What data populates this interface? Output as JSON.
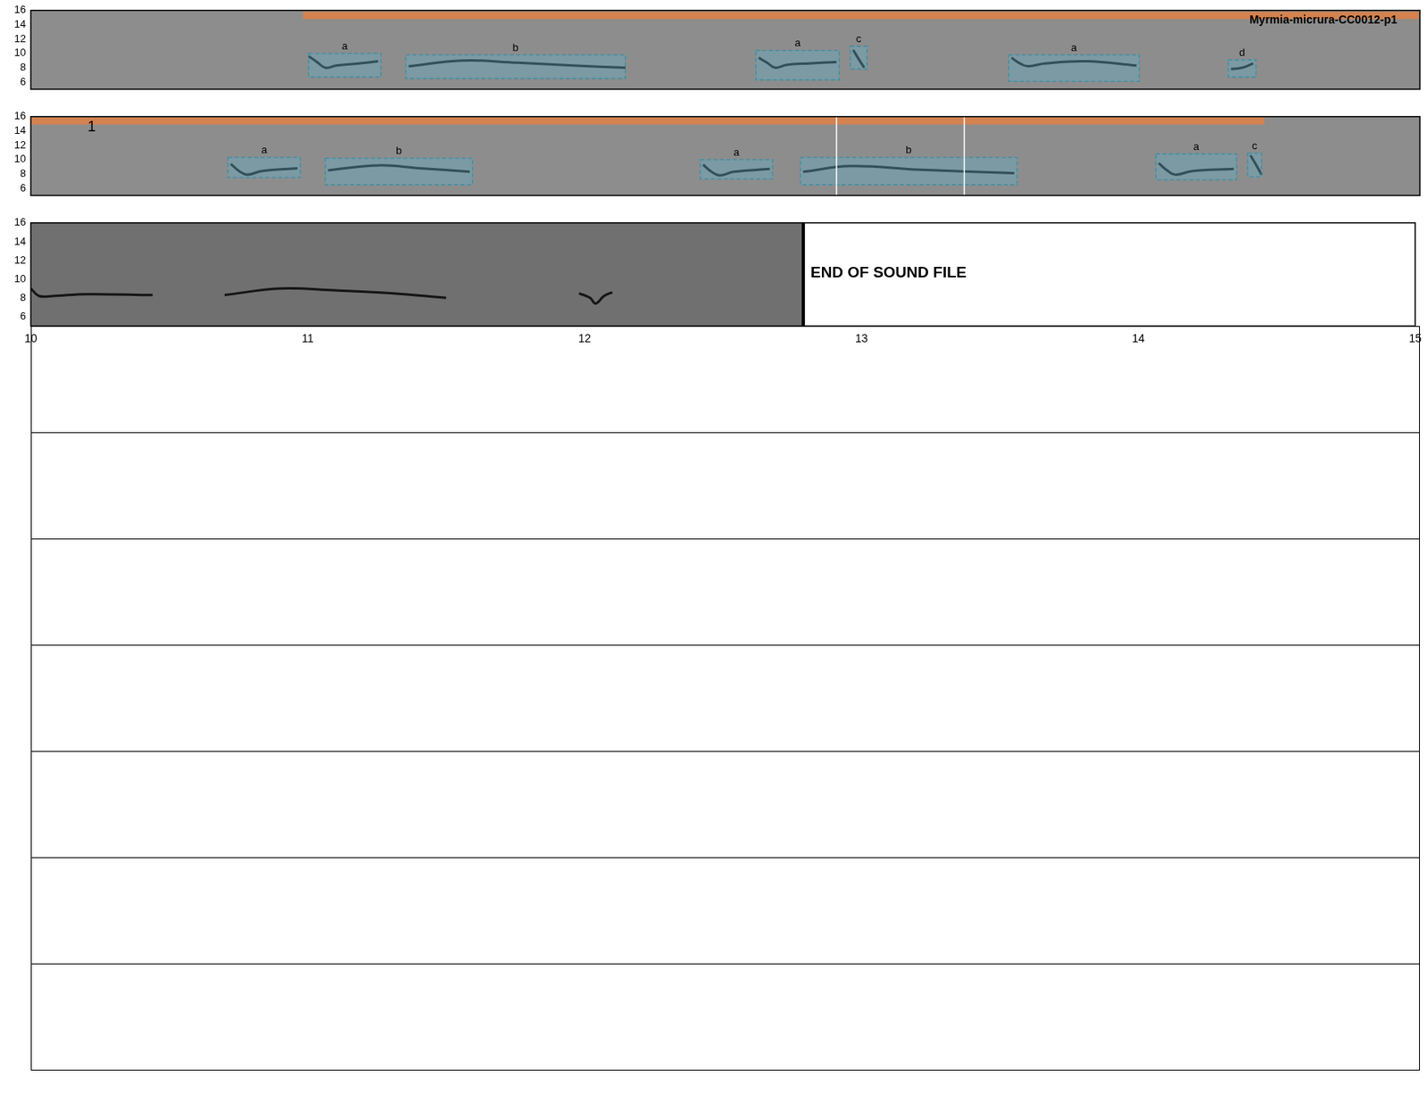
{
  "chart_data": [
    {
      "type": "spectrogram",
      "title": "Myrmia-micrura-CC0012-p1",
      "xlim": [
        0,
        5
      ],
      "ylim": [
        5,
        16
      ],
      "yticks": [
        6,
        8,
        10,
        12,
        14,
        16
      ],
      "tick_labels": "y",
      "grid": false,
      "selection": {
        "x": [
          0.98,
          5.0
        ],
        "y": 15.3
      },
      "annotations": [
        {
          "label": "a",
          "x": [
            1.0,
            1.26
          ],
          "y": [
            6.7,
            10.0
          ]
        },
        {
          "label": "b",
          "x": [
            1.35,
            2.14
          ],
          "y": [
            6.5,
            9.8
          ]
        },
        {
          "label": "a",
          "x": [
            2.61,
            2.91
          ],
          "y": [
            6.3,
            10.4
          ]
        },
        {
          "label": "c",
          "x": [
            2.95,
            3.01
          ],
          "y": [
            7.8,
            11.0
          ]
        },
        {
          "label": "a",
          "x": [
            3.52,
            3.99
          ],
          "y": [
            6.1,
            9.8
          ]
        },
        {
          "label": "d",
          "x": [
            4.31,
            4.41
          ],
          "y": [
            6.7,
            9.1
          ]
        }
      ],
      "contours": [
        {
          "x": [
            1.0,
            1.03,
            1.06,
            1.1,
            1.18,
            1.25
          ],
          "y": [
            9.6,
            8.8,
            8.0,
            8.3,
            8.6,
            8.9
          ]
        },
        {
          "x": [
            1.36,
            1.55,
            1.75,
            1.95,
            2.14
          ],
          "y": [
            8.2,
            9.0,
            8.7,
            8.3,
            8.0
          ]
        },
        {
          "x": [
            2.62,
            2.65,
            2.68,
            2.72,
            2.8,
            2.9
          ],
          "y": [
            9.4,
            8.7,
            8.0,
            8.4,
            8.6,
            8.8
          ]
        },
        {
          "x": [
            2.96,
            2.98,
            3.0
          ],
          "y": [
            10.5,
            9.2,
            8.0
          ]
        },
        {
          "x": [
            3.53,
            3.56,
            3.59,
            3.65,
            3.8,
            3.98
          ],
          "y": [
            9.4,
            8.6,
            8.2,
            8.6,
            8.9,
            8.3
          ]
        },
        {
          "x": [
            4.32,
            4.36,
            4.4
          ],
          "y": [
            7.8,
            8.0,
            8.6
          ]
        }
      ]
    },
    {
      "type": "spectrogram",
      "xlim": [
        5,
        10
      ],
      "ylim": [
        5,
        16
      ],
      "yticks": [
        6,
        8,
        10,
        12,
        14,
        16
      ],
      "tick_labels": "y",
      "grid": false,
      "selection": {
        "x": [
          5.0,
          9.44
        ],
        "y": 15.4,
        "label": "1"
      },
      "cursor_lines": [
        7.9,
        8.36
      ],
      "annotations": [
        {
          "label": "a",
          "x": [
            5.71,
            5.97
          ],
          "y": [
            7.5,
            10.3
          ]
        },
        {
          "label": "b",
          "x": [
            6.06,
            6.59
          ],
          "y": [
            6.5,
            10.2
          ]
        },
        {
          "label": "a",
          "x": [
            7.41,
            7.67
          ],
          "y": [
            7.3,
            10.0
          ]
        },
        {
          "label": "b",
          "x": [
            7.77,
            8.55
          ],
          "y": [
            6.5,
            10.3
          ]
        },
        {
          "label": "a",
          "x": [
            9.05,
            9.34
          ],
          "y": [
            7.2,
            10.8
          ]
        },
        {
          "label": "c",
          "x": [
            9.38,
            9.43
          ],
          "y": [
            7.6,
            10.9
          ]
        }
      ],
      "contours": [
        {
          "x": [
            5.72,
            5.75,
            5.78,
            5.83,
            5.96
          ],
          "y": [
            9.4,
            8.4,
            7.9,
            8.4,
            8.8
          ]
        },
        {
          "x": [
            6.07,
            6.25,
            6.4,
            6.58
          ],
          "y": [
            8.5,
            9.2,
            8.8,
            8.3
          ]
        },
        {
          "x": [
            7.42,
            7.45,
            7.48,
            7.53,
            7.66
          ],
          "y": [
            9.3,
            8.3,
            7.8,
            8.3,
            8.7
          ]
        },
        {
          "x": [
            7.78,
            7.95,
            8.2,
            8.54
          ],
          "y": [
            8.3,
            9.1,
            8.6,
            8.1
          ]
        },
        {
          "x": [
            9.06,
            9.09,
            9.12,
            9.18,
            9.33
          ],
          "y": [
            9.5,
            8.5,
            7.9,
            8.4,
            8.7
          ]
        },
        {
          "x": [
            9.39,
            9.41,
            9.43
          ],
          "y": [
            10.6,
            9.3,
            7.9
          ]
        }
      ]
    },
    {
      "type": "spectrogram",
      "xlim": [
        10,
        15
      ],
      "ylim": [
        5,
        16
      ],
      "yticks": [
        6,
        8,
        10,
        12,
        14,
        16
      ],
      "xticks": [
        10,
        11,
        12,
        13,
        14,
        15
      ],
      "tick_labels": true,
      "grid": false,
      "end_of_file": {
        "x": 12.79,
        "label": "END OF SOUND FILE"
      },
      "contours": [
        {
          "x": [
            10.0,
            10.03,
            10.08,
            10.2,
            10.44
          ],
          "y": [
            9.0,
            8.2,
            8.2,
            8.4,
            8.3
          ]
        },
        {
          "x": [
            10.7,
            10.9,
            11.1,
            11.3,
            11.5
          ],
          "y": [
            8.3,
            9.0,
            8.8,
            8.5,
            8.0
          ]
        },
        {
          "x": [
            11.98,
            12.02,
            12.04,
            12.07,
            12.1
          ],
          "y": [
            8.5,
            8.0,
            7.4,
            8.2,
            8.6
          ]
        }
      ]
    }
  ]
}
